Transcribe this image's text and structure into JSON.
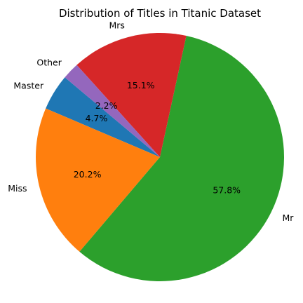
{
  "chart_data": {
    "type": "pie",
    "title": "Distribution of Titles in Titanic Dataset",
    "slices": [
      {
        "label": "Master",
        "value": 4.7,
        "pct_text": "4.7%",
        "color": "#1f77b4"
      },
      {
        "label": "Miss",
        "value": 20.2,
        "pct_text": "20.2%",
        "color": "#ff7f0e"
      },
      {
        "label": "Mr",
        "value": 57.8,
        "pct_text": "57.8%",
        "color": "#2ca02c"
      },
      {
        "label": "Mrs",
        "value": 15.1,
        "pct_text": "15.1%",
        "color": "#d62728"
      },
      {
        "label": "Other",
        "value": 2.2,
        "pct_text": "2.2%",
        "color": "#9467bd"
      }
    ],
    "start_angle_deg": 140,
    "direction": "counterclockwise"
  }
}
